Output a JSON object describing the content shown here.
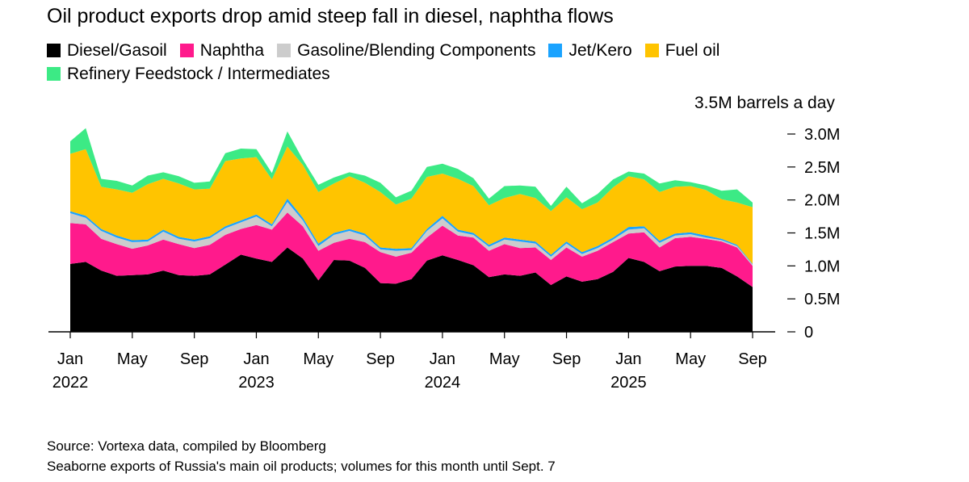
{
  "title": "Oil product exports drop amid steep fall in diesel, naphtha flows",
  "unit_label": "3.5M barrels a day",
  "source": "Source: Vortexa data, compiled by Bloomberg",
  "note": "Seaborne exports of Russia's main oil products; volumes for this month until Sept. 7",
  "chart_data": {
    "type": "area",
    "stacked": true,
    "title": "Oil product exports drop amid steep fall in diesel, naphtha flows",
    "ylabel": "3.5M barrels a day",
    "ylim": [
      0,
      3.0
    ],
    "yticks": [
      0,
      0.5,
      1.0,
      1.5,
      2.0,
      2.5,
      3.0
    ],
    "ytick_labels": [
      "0",
      "0.5M",
      "1.0M",
      "1.5M",
      "2.0M",
      "2.5M",
      "3.0M"
    ],
    "x": [
      "2022-01",
      "2022-02",
      "2022-03",
      "2022-04",
      "2022-05",
      "2022-06",
      "2022-07",
      "2022-08",
      "2022-09",
      "2022-10",
      "2022-11",
      "2022-12",
      "2023-01",
      "2023-02",
      "2023-03",
      "2023-04",
      "2023-05",
      "2023-06",
      "2023-07",
      "2023-08",
      "2023-09",
      "2023-10",
      "2023-11",
      "2023-12",
      "2024-01",
      "2024-02",
      "2024-03",
      "2024-04",
      "2024-05",
      "2024-06",
      "2024-07",
      "2024-08",
      "2024-09",
      "2024-10",
      "2024-11",
      "2024-12",
      "2025-01",
      "2025-02",
      "2025-03",
      "2025-04",
      "2025-05",
      "2025-06",
      "2025-07",
      "2025-08",
      "2025-09"
    ],
    "xtick_labels": [
      {
        "month": "Jan",
        "year": "2022",
        "at": "2022-01"
      },
      {
        "month": "May",
        "year": "",
        "at": "2022-05"
      },
      {
        "month": "Sep",
        "year": "",
        "at": "2022-09"
      },
      {
        "month": "Jan",
        "year": "2023",
        "at": "2023-01"
      },
      {
        "month": "May",
        "year": "",
        "at": "2023-05"
      },
      {
        "month": "Sep",
        "year": "",
        "at": "2023-09"
      },
      {
        "month": "Jan",
        "year": "2024",
        "at": "2024-01"
      },
      {
        "month": "May",
        "year": "",
        "at": "2024-05"
      },
      {
        "month": "Sep",
        "year": "",
        "at": "2024-09"
      },
      {
        "month": "Jan",
        "year": "2025",
        "at": "2025-01"
      },
      {
        "month": "May",
        "year": "",
        "at": "2025-05"
      },
      {
        "month": "Sep",
        "year": "",
        "at": "2025-09"
      }
    ],
    "series": [
      {
        "name": "Diesel/Gasoil",
        "color": "#000000",
        "values": [
          1.03,
          1.06,
          0.93,
          0.85,
          0.86,
          0.87,
          0.93,
          0.86,
          0.85,
          0.87,
          1.02,
          1.17,
          1.11,
          1.06,
          1.28,
          1.11,
          0.78,
          1.09,
          1.08,
          0.97,
          0.74,
          0.73,
          0.8,
          1.08,
          1.16,
          1.09,
          1.01,
          0.83,
          0.87,
          0.85,
          0.9,
          0.71,
          0.84,
          0.76,
          0.8,
          0.91,
          1.12,
          1.06,
          0.92,
          0.99,
          1.0,
          1.0,
          0.97,
          0.84,
          0.68
        ]
      },
      {
        "name": "Naphtha",
        "color": "#ff1a8c",
        "values": [
          0.62,
          0.57,
          0.48,
          0.48,
          0.4,
          0.44,
          0.47,
          0.47,
          0.42,
          0.45,
          0.45,
          0.39,
          0.51,
          0.49,
          0.53,
          0.49,
          0.45,
          0.26,
          0.33,
          0.39,
          0.47,
          0.41,
          0.4,
          0.35,
          0.45,
          0.37,
          0.42,
          0.4,
          0.46,
          0.42,
          0.38,
          0.38,
          0.44,
          0.38,
          0.43,
          0.45,
          0.37,
          0.45,
          0.36,
          0.43,
          0.44,
          0.41,
          0.4,
          0.44,
          0.32
        ]
      },
      {
        "name": "Gasoline/Blending Components",
        "color": "#cccccc",
        "values": [
          0.15,
          0.1,
          0.12,
          0.1,
          0.1,
          0.06,
          0.12,
          0.08,
          0.1,
          0.1,
          0.1,
          0.1,
          0.13,
          0.05,
          0.16,
          0.09,
          0.07,
          0.12,
          0.12,
          0.1,
          0.04,
          0.09,
          0.04,
          0.1,
          0.11,
          0.06,
          0.04,
          0.06,
          0.07,
          0.1,
          0.06,
          0.05,
          0.06,
          0.04,
          0.04,
          0.04,
          0.06,
          0.06,
          0.07,
          0.04,
          0.04,
          0.02,
          0.02,
          0.02,
          0.02
        ]
      },
      {
        "name": "Jet/Kero",
        "color": "#1aa3ff",
        "values": [
          0.03,
          0.03,
          0.03,
          0.03,
          0.03,
          0.03,
          0.03,
          0.03,
          0.03,
          0.03,
          0.03,
          0.03,
          0.03,
          0.03,
          0.05,
          0.04,
          0.04,
          0.03,
          0.03,
          0.03,
          0.03,
          0.03,
          0.03,
          0.03,
          0.04,
          0.03,
          0.03,
          0.03,
          0.03,
          0.03,
          0.03,
          0.03,
          0.03,
          0.03,
          0.03,
          0.03,
          0.04,
          0.03,
          0.03,
          0.03,
          0.03,
          0.03,
          0.02,
          0.02,
          0.01
        ]
      },
      {
        "name": "Fuel oil",
        "color": "#ffc400",
        "values": [
          0.87,
          1.01,
          0.64,
          0.7,
          0.72,
          0.84,
          0.77,
          0.81,
          0.76,
          0.72,
          0.99,
          0.94,
          0.87,
          0.68,
          0.79,
          0.8,
          0.78,
          0.75,
          0.8,
          0.77,
          0.84,
          0.67,
          0.75,
          0.79,
          0.64,
          0.77,
          0.71,
          0.6,
          0.6,
          0.69,
          0.66,
          0.66,
          0.67,
          0.65,
          0.66,
          0.76,
          0.77,
          0.71,
          0.74,
          0.71,
          0.7,
          0.69,
          0.6,
          0.64,
          0.86
        ]
      },
      {
        "name": "Refinery Feedstock / Intermediates",
        "color": "#3cea85",
        "values": [
          0.19,
          0.32,
          0.12,
          0.13,
          0.11,
          0.13,
          0.1,
          0.11,
          0.1,
          0.11,
          0.12,
          0.15,
          0.12,
          0.1,
          0.23,
          0.08,
          0.11,
          0.09,
          0.06,
          0.11,
          0.14,
          0.11,
          0.12,
          0.15,
          0.15,
          0.15,
          0.12,
          0.1,
          0.18,
          0.13,
          0.17,
          0.08,
          0.16,
          0.09,
          0.13,
          0.12,
          0.07,
          0.09,
          0.13,
          0.1,
          0.06,
          0.07,
          0.13,
          0.2,
          0.07
        ]
      }
    ]
  }
}
